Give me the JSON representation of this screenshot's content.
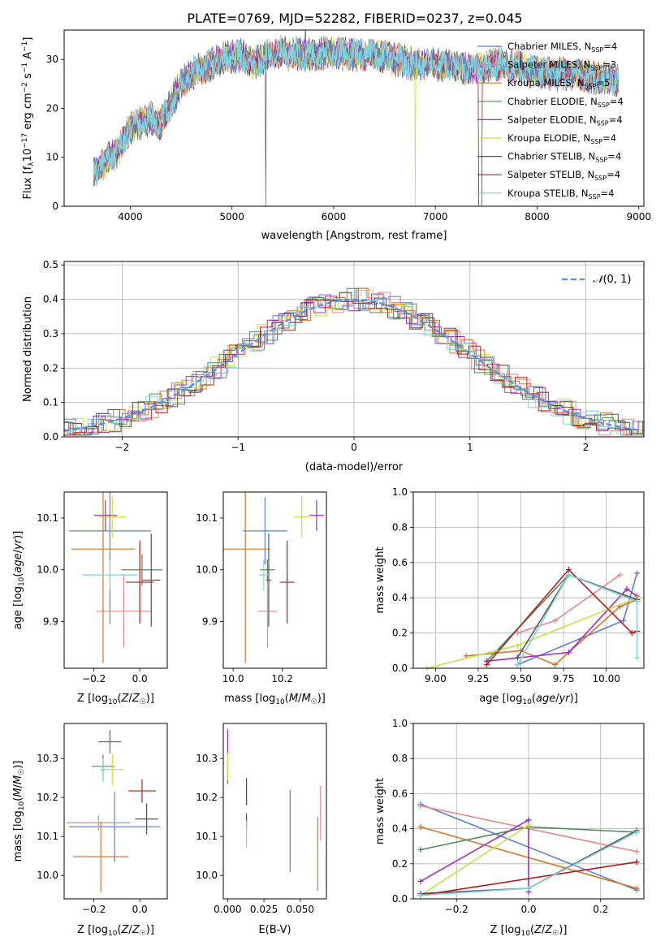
{
  "page_title": "PLATE=0769, MJD=52282, FIBERID=0237, z=0.045",
  "models": [
    {
      "label": "Chabrier MILES, N$_{SSP}$=4",
      "base": "Chabrier MILES, N",
      "sub": "SSP",
      "tail": "=4",
      "color": "#5b7fd6"
    },
    {
      "label": "Salpeter MILES, N$_{SSP}$=3",
      "base": "Salpeter MILES, N",
      "sub": "SSP",
      "tail": "=3",
      "color": "#e08a8a"
    },
    {
      "label": "Kroupa MILES, N$_{SSP}$=5",
      "base": "Kroupa MILES, N",
      "sub": "SSP",
      "tail": "=5",
      "color": "#d2762b"
    },
    {
      "label": "Chabrier ELODIE, N$_{SSP}$=4",
      "base": "Chabrier ELODIE, N",
      "sub": "SSP",
      "tail": "=4",
      "color": "#4f8a5c"
    },
    {
      "label": "Salpeter ELODIE, N$_{SSP}$=4",
      "base": "Salpeter ELODIE, N",
      "sub": "SSP",
      "tail": "=4",
      "color": "#9b2fc0"
    },
    {
      "label": "Kroupa ELODIE, N$_{SSP}$=4",
      "base": "Kroupa ELODIE, N",
      "sub": "SSP",
      "tail": "=4",
      "color": "#c8e04a"
    },
    {
      "label": "Chabrier STELIB, N$_{SSP}$=4",
      "base": "Chabrier STELIB, N",
      "sub": "SSP",
      "tail": "=4",
      "color": "#555555"
    },
    {
      "label": "Salpeter STELIB, N$_{SSP}$=4",
      "base": "Salpeter STELIB, N",
      "sub": "SSP",
      "tail": "=4",
      "color": "#b51d1d"
    },
    {
      "label": "Kroupa STELIB, N$_{SSP}$=4",
      "base": "Kroupa STELIB, N",
      "sub": "SSP",
      "tail": "=4",
      "color": "#7fd3dc"
    }
  ],
  "chart_data": [
    {
      "id": "spectrum",
      "type": "line",
      "title": "PLATE=0769, MJD=52282, FIBERID=0237, z=0.045",
      "xlabel": "wavelength [Angstrom, rest frame]",
      "ylabel": "Flux [f_λ 10^-17 erg cm^-2 s^-1 A^-1]",
      "xlim": [
        3350,
        9050
      ],
      "ylim": [
        0,
        36
      ],
      "xticks": [
        4000,
        5000,
        6000,
        7000,
        8000,
        9000
      ],
      "yticks": [
        0,
        10,
        20,
        30
      ],
      "legend_position": "upper right",
      "continuum_x": [
        3640,
        3800,
        3900,
        4000,
        4100,
        4200,
        4300,
        4400,
        4500,
        4600,
        4700,
        4800,
        4900,
        5000,
        5100,
        5200,
        5300,
        5400,
        5500,
        5600,
        5800,
        6000,
        6200,
        6400,
        6600,
        6800,
        7000,
        7200,
        7400,
        7600,
        7800,
        8000,
        8200,
        8400,
        8600,
        8800
      ],
      "continuum_y": [
        7,
        10,
        12,
        16,
        17,
        18,
        17,
        21,
        25,
        27,
        28,
        29,
        30,
        30.5,
        31,
        29,
        30,
        31,
        31.5,
        31,
        31,
        31.5,
        31,
        31,
        30,
        29,
        29,
        28.5,
        28,
        29,
        28.5,
        27.5,
        27,
        27,
        26,
        26
      ]
    },
    {
      "id": "residuals",
      "type": "histogram",
      "xlabel": "(data-model)/error",
      "ylabel": "Normed distribution",
      "xlim": [
        -2.5,
        2.5
      ],
      "ylim": [
        0,
        0.51
      ],
      "xticks": [
        -2,
        -1,
        0,
        1,
        2
      ],
      "yticks": [
        0.0,
        0.1,
        0.2,
        0.3,
        0.4,
        0.5
      ],
      "legend": "N(0,1)",
      "reference_curve": {
        "name": "N(0,1)",
        "mean": 0,
        "sigma": 1,
        "color": "#5b8fd9"
      }
    },
    {
      "id": "age-vs-Z",
      "type": "scatter",
      "xlabel": "Z [log10(Z/Z☉)]",
      "ylabel": "age  [log10(age/yr)]",
      "xlim": [
        -0.33,
        0.12
      ],
      "ylim": [
        9.81,
        10.15
      ],
      "xticks": [
        -0.2,
        0.0
      ],
      "yticks": [
        9.9,
        10.0,
        10.1
      ],
      "points": [
        {
          "x": -0.13,
          "xerr": 0.18,
          "y": 10.075,
          "yerr": 0.18,
          "c": 0
        },
        {
          "x": -0.07,
          "xerr": 0.12,
          "y": 9.92,
          "yerr": 0.07,
          "c": 1
        },
        {
          "x": -0.16,
          "xerr": 0.14,
          "y": 10.04,
          "yerr": 0.22,
          "c": 2
        },
        {
          "x": 0.01,
          "xerr": 0.09,
          "y": 10.0,
          "yerr": 0.03,
          "c": 3
        },
        {
          "x": -0.15,
          "xerr": 0.05,
          "y": 10.105,
          "yerr": 0.03,
          "c": 4
        },
        {
          "x": -0.12,
          "xerr": 0.06,
          "y": 10.102,
          "yerr": 0.04,
          "c": 5
        },
        {
          "x": 0.05,
          "xerr": 0.04,
          "y": 9.98,
          "yerr": 0.09,
          "c": 6
        },
        {
          "x": 0.0,
          "xerr": 0.06,
          "y": 9.976,
          "yerr": 0.08,
          "c": 7
        },
        {
          "x": -0.13,
          "xerr": 0.12,
          "y": 9.99,
          "yerr": 0.03,
          "c": 8
        }
      ]
    },
    {
      "id": "age-vs-mass",
      "type": "scatter",
      "xlabel": "mass [log10(M/M☉)]",
      "ylabel": "",
      "xlim": [
        9.96,
        10.38
      ],
      "ylim": [
        9.81,
        10.15
      ],
      "xticks": [
        10.0,
        10.2
      ],
      "yticks": [
        9.9,
        10.0,
        10.1
      ],
      "points": [
        {
          "x": 10.13,
          "xerr": 0.09,
          "y": 10.075,
          "yerr": 0.065,
          "c": 0
        },
        {
          "x": 10.14,
          "xerr": 0.04,
          "y": 9.92,
          "yerr": 0.07,
          "c": 1
        },
        {
          "x": 10.05,
          "xerr": 0.1,
          "y": 10.04,
          "yerr": 0.22,
          "c": 2
        },
        {
          "x": 10.14,
          "xerr": 0.03,
          "y": 10.0,
          "yerr": 0.02,
          "c": 3
        },
        {
          "x": 10.34,
          "xerr": 0.03,
          "y": 10.105,
          "yerr": 0.03,
          "c": 4
        },
        {
          "x": 10.28,
          "xerr": 0.03,
          "y": 10.102,
          "yerr": 0.04,
          "c": 5
        },
        {
          "x": 10.145,
          "xerr": 0.01,
          "y": 9.98,
          "yerr": 0.09,
          "c": 6
        },
        {
          "x": 10.22,
          "xerr": 0.03,
          "y": 9.976,
          "yerr": 0.08,
          "c": 7
        },
        {
          "x": 10.125,
          "xerr": 0.02,
          "y": 9.99,
          "yerr": 0.03,
          "c": 8
        }
      ]
    },
    {
      "id": "mass-weight-vs-age",
      "type": "line",
      "xlabel": "age  [log10(age/yr)]",
      "ylabel": "mass weight",
      "xlim": [
        8.87,
        10.22
      ],
      "ylim": [
        0,
        1.0
      ],
      "xticks": [
        9.0,
        9.25,
        9.5,
        9.75,
        10.0
      ],
      "yticks": [
        0.0,
        0.2,
        0.4,
        0.6,
        0.8,
        1.0
      ],
      "series": [
        {
          "c": 0,
          "x": [
            9.48,
            10.1,
            10.18
          ],
          "y": [
            0.02,
            0.27,
            0.54
          ]
        },
        {
          "c": 1,
          "x": [
            9.48,
            9.7,
            10.08
          ],
          "y": [
            0.2,
            0.27,
            0.53
          ]
        },
        {
          "c": 2,
          "x": [
            9.18,
            9.5,
            9.7,
            10.08,
            10.18
          ],
          "y": [
            0.07,
            0.1,
            0.02,
            0.35,
            0.39
          ]
        },
        {
          "c": 3,
          "x": [
            9.3,
            9.78,
            10.18
          ],
          "y": [
            0.04,
            0.53,
            0.38
          ]
        },
        {
          "c": 4,
          "x": [
            9.3,
            9.78,
            10.12,
            10.18
          ],
          "y": [
            0.04,
            0.09,
            0.45,
            0.41
          ]
        },
        {
          "c": 5,
          "x": [
            8.95,
            9.48,
            10.18
          ],
          "y": [
            0.0,
            0.13,
            0.4
          ]
        },
        {
          "c": 6,
          "x": [
            9.48,
            9.78,
            10.18
          ],
          "y": [
            0.06,
            0.53,
            0.39
          ]
        },
        {
          "c": 7,
          "x": [
            9.3,
            9.78,
            10.15,
            10.18
          ],
          "y": [
            0.02,
            0.56,
            0.2,
            0.21
          ]
        },
        {
          "c": 8,
          "x": [
            9.48,
            9.78,
            10.18,
            10.18
          ],
          "y": [
            0.02,
            0.53,
            0.38,
            0.06
          ]
        }
      ]
    },
    {
      "id": "mass-vs-Z",
      "type": "scatter",
      "xlabel": "Z [log10(Z/Z☉)]",
      "ylabel": "mass [log10(M/M☉)]",
      "xlim": [
        -0.33,
        0.12
      ],
      "ylim": [
        9.94,
        10.39
      ],
      "xticks": [
        -0.2,
        0.0
      ],
      "yticks": [
        10.0,
        10.1,
        10.2,
        10.3
      ],
      "points": [
        {
          "x": -0.11,
          "xerr": 0.2,
          "y": 10.125,
          "yerr": 0.09,
          "c": 0
        },
        {
          "x": -0.18,
          "xerr": 0.14,
          "y": 10.135,
          "yerr": 0.02,
          "c": 1
        },
        {
          "x": -0.17,
          "xerr": 0.12,
          "y": 10.048,
          "yerr": 0.09,
          "c": 2
        },
        {
          "x": -0.16,
          "xerr": 0.05,
          "y": 10.28,
          "yerr": 0.03,
          "c": 3
        },
        {
          "x": -0.13,
          "xerr": 0.05,
          "y": 10.343,
          "yerr": 0.03,
          "c": 4
        },
        {
          "x": -0.12,
          "xerr": 0.05,
          "y": 10.272,
          "yerr": 0.04,
          "c": 5
        },
        {
          "x": 0.03,
          "xerr": 0.05,
          "y": 10.145,
          "yerr": 0.04,
          "c": 6
        },
        {
          "x": 0.01,
          "xerr": 0.06,
          "y": 10.217,
          "yerr": 0.03,
          "c": 7
        },
        {
          "x": -0.16,
          "xerr": 0.01,
          "y": 10.27,
          "yerr": 0.03,
          "c": 8
        }
      ]
    },
    {
      "id": "mass-vs-EBV",
      "type": "scatter",
      "xlabel": "E(B-V)",
      "ylabel": "",
      "xlim": [
        -0.003,
        0.068
      ],
      "ylim": [
        9.94,
        10.39
      ],
      "xticks": [
        0.0,
        0.025,
        0.05
      ],
      "yticks": [
        10.0,
        10.1,
        10.2,
        10.3
      ],
      "points": [
        {
          "x": 0.043,
          "xerr": 0,
          "y": 10.115,
          "yerr": 0.105,
          "c": 0
        },
        {
          "x": 0.064,
          "xerr": 0,
          "y": 10.16,
          "yerr": 0.07,
          "c": 1
        },
        {
          "x": 0.062,
          "xerr": 0,
          "y": 10.055,
          "yerr": 0.095,
          "c": 2
        },
        {
          "x": 0.0,
          "xerr": 0,
          "y": 10.26,
          "yerr": 0.025,
          "c": 3
        },
        {
          "x": 0.0,
          "xerr": 0,
          "y": 10.34,
          "yerr": 0.035,
          "c": 4
        },
        {
          "x": 0.0,
          "xerr": 0,
          "y": 10.28,
          "yerr": 0.035,
          "c": 5
        },
        {
          "x": 0.013,
          "xerr": 0,
          "y": 10.14,
          "yerr": 0.02,
          "c": 6
        },
        {
          "x": 0.013,
          "xerr": 0,
          "y": 10.215,
          "yerr": 0.035,
          "c": 7
        },
        {
          "x": 0.013,
          "xerr": 0,
          "y": 10.105,
          "yerr": 0.035,
          "c": 8
        }
      ]
    },
    {
      "id": "mass-weight-vs-Z",
      "type": "line",
      "xlabel": "Z [log10(Z/Z☉)]",
      "ylabel": "mass weight",
      "xlim": [
        -0.32,
        0.32
      ],
      "ylim": [
        0,
        1.0
      ],
      "xticks": [
        -0.2,
        0.0,
        0.2
      ],
      "yticks": [
        0.0,
        0.2,
        0.4,
        0.6,
        0.8,
        1.0
      ],
      "series": [
        {
          "c": 0,
          "x": [
            -0.3,
            0.3
          ],
          "y": [
            0.54,
            0.05
          ]
        },
        {
          "c": 1,
          "x": [
            -0.3,
            0.3
          ],
          "y": [
            0.53,
            0.27
          ]
        },
        {
          "c": 2,
          "x": [
            -0.3,
            0.3
          ],
          "y": [
            0.41,
            0.06
          ]
        },
        {
          "c": 3,
          "x": [
            -0.3,
            0.0,
            0.3
          ],
          "y": [
            0.28,
            0.41,
            0.38
          ]
        },
        {
          "c": 4,
          "x": [
            -0.3,
            0.0,
            0.0
          ],
          "y": [
            0.1,
            0.45,
            0.04
          ]
        },
        {
          "c": 5,
          "x": [
            -0.3,
            0.0
          ],
          "y": [
            0.02,
            0.42
          ]
        },
        {
          "c": 6,
          "x": [
            -0.3,
            0.0,
            0.3
          ],
          "y": [
            0.03,
            0.06,
            0.39
          ]
        },
        {
          "c": 7,
          "x": [
            -0.3,
            0.3
          ],
          "y": [
            0.02,
            0.21
          ]
        },
        {
          "c": 8,
          "x": [
            -0.3,
            0.0,
            0.3
          ],
          "y": [
            0.02,
            0.06,
            0.38
          ]
        }
      ]
    }
  ]
}
